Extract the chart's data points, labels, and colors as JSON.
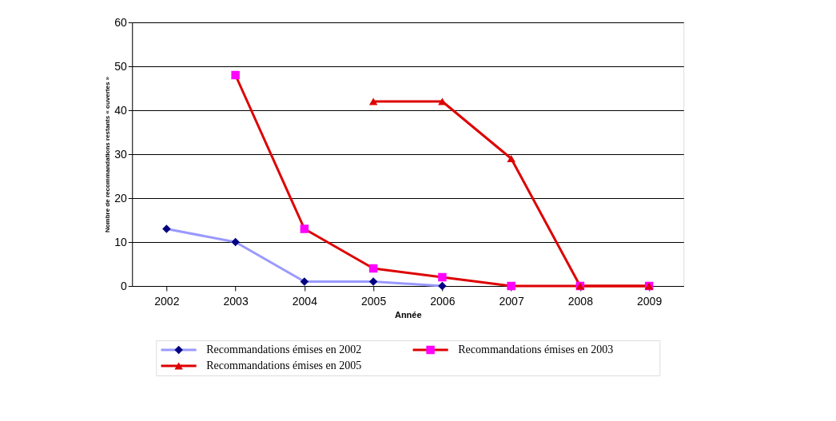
{
  "chart_data": {
    "type": "line",
    "xlabel": "Année",
    "ylabel": "Nombre de  recommandations restants « ouvertes »",
    "categories": [
      "2002",
      "2003",
      "2004",
      "2005",
      "2006",
      "2007",
      "2008",
      "2009"
    ],
    "series": [
      {
        "name": "Recommandations émises en 2002",
        "color": "#9999ff",
        "colors": [
          "#000080",
          "#000080",
          "#000080",
          "#000080",
          "#000080",
          null,
          null,
          null
        ],
        "marker": "diamond",
        "values": [
          13,
          10,
          1,
          1,
          0,
          null,
          null,
          null
        ]
      },
      {
        "name": "Recommandations émises en 2003",
        "color": "#dd0000",
        "colors": [
          null,
          "#ff00ff",
          "#ff00ff",
          "#ff00ff",
          "#ff00ff",
          "#ff00ff",
          "#ff00ff",
          "#ff00ff"
        ],
        "marker": "square",
        "values": [
          null,
          48,
          13,
          4,
          2,
          0,
          0,
          0
        ]
      },
      {
        "name": "Recommandations émises en 2005",
        "color": "#dd0000",
        "colors": [
          null,
          null,
          null,
          "#dd0000",
          "#dd0000",
          "#dd0000",
          "#dd0000",
          "#dd0000"
        ],
        "marker": "triangle",
        "values": [
          null,
          null,
          null,
          42,
          42,
          29,
          0,
          0
        ]
      }
    ],
    "ylim": [
      0,
      60
    ],
    "yticks": [
      0,
      10,
      20,
      30,
      40,
      50,
      60
    ],
    "grid": "y",
    "legend": "bottom",
    "line_style": "solid"
  }
}
